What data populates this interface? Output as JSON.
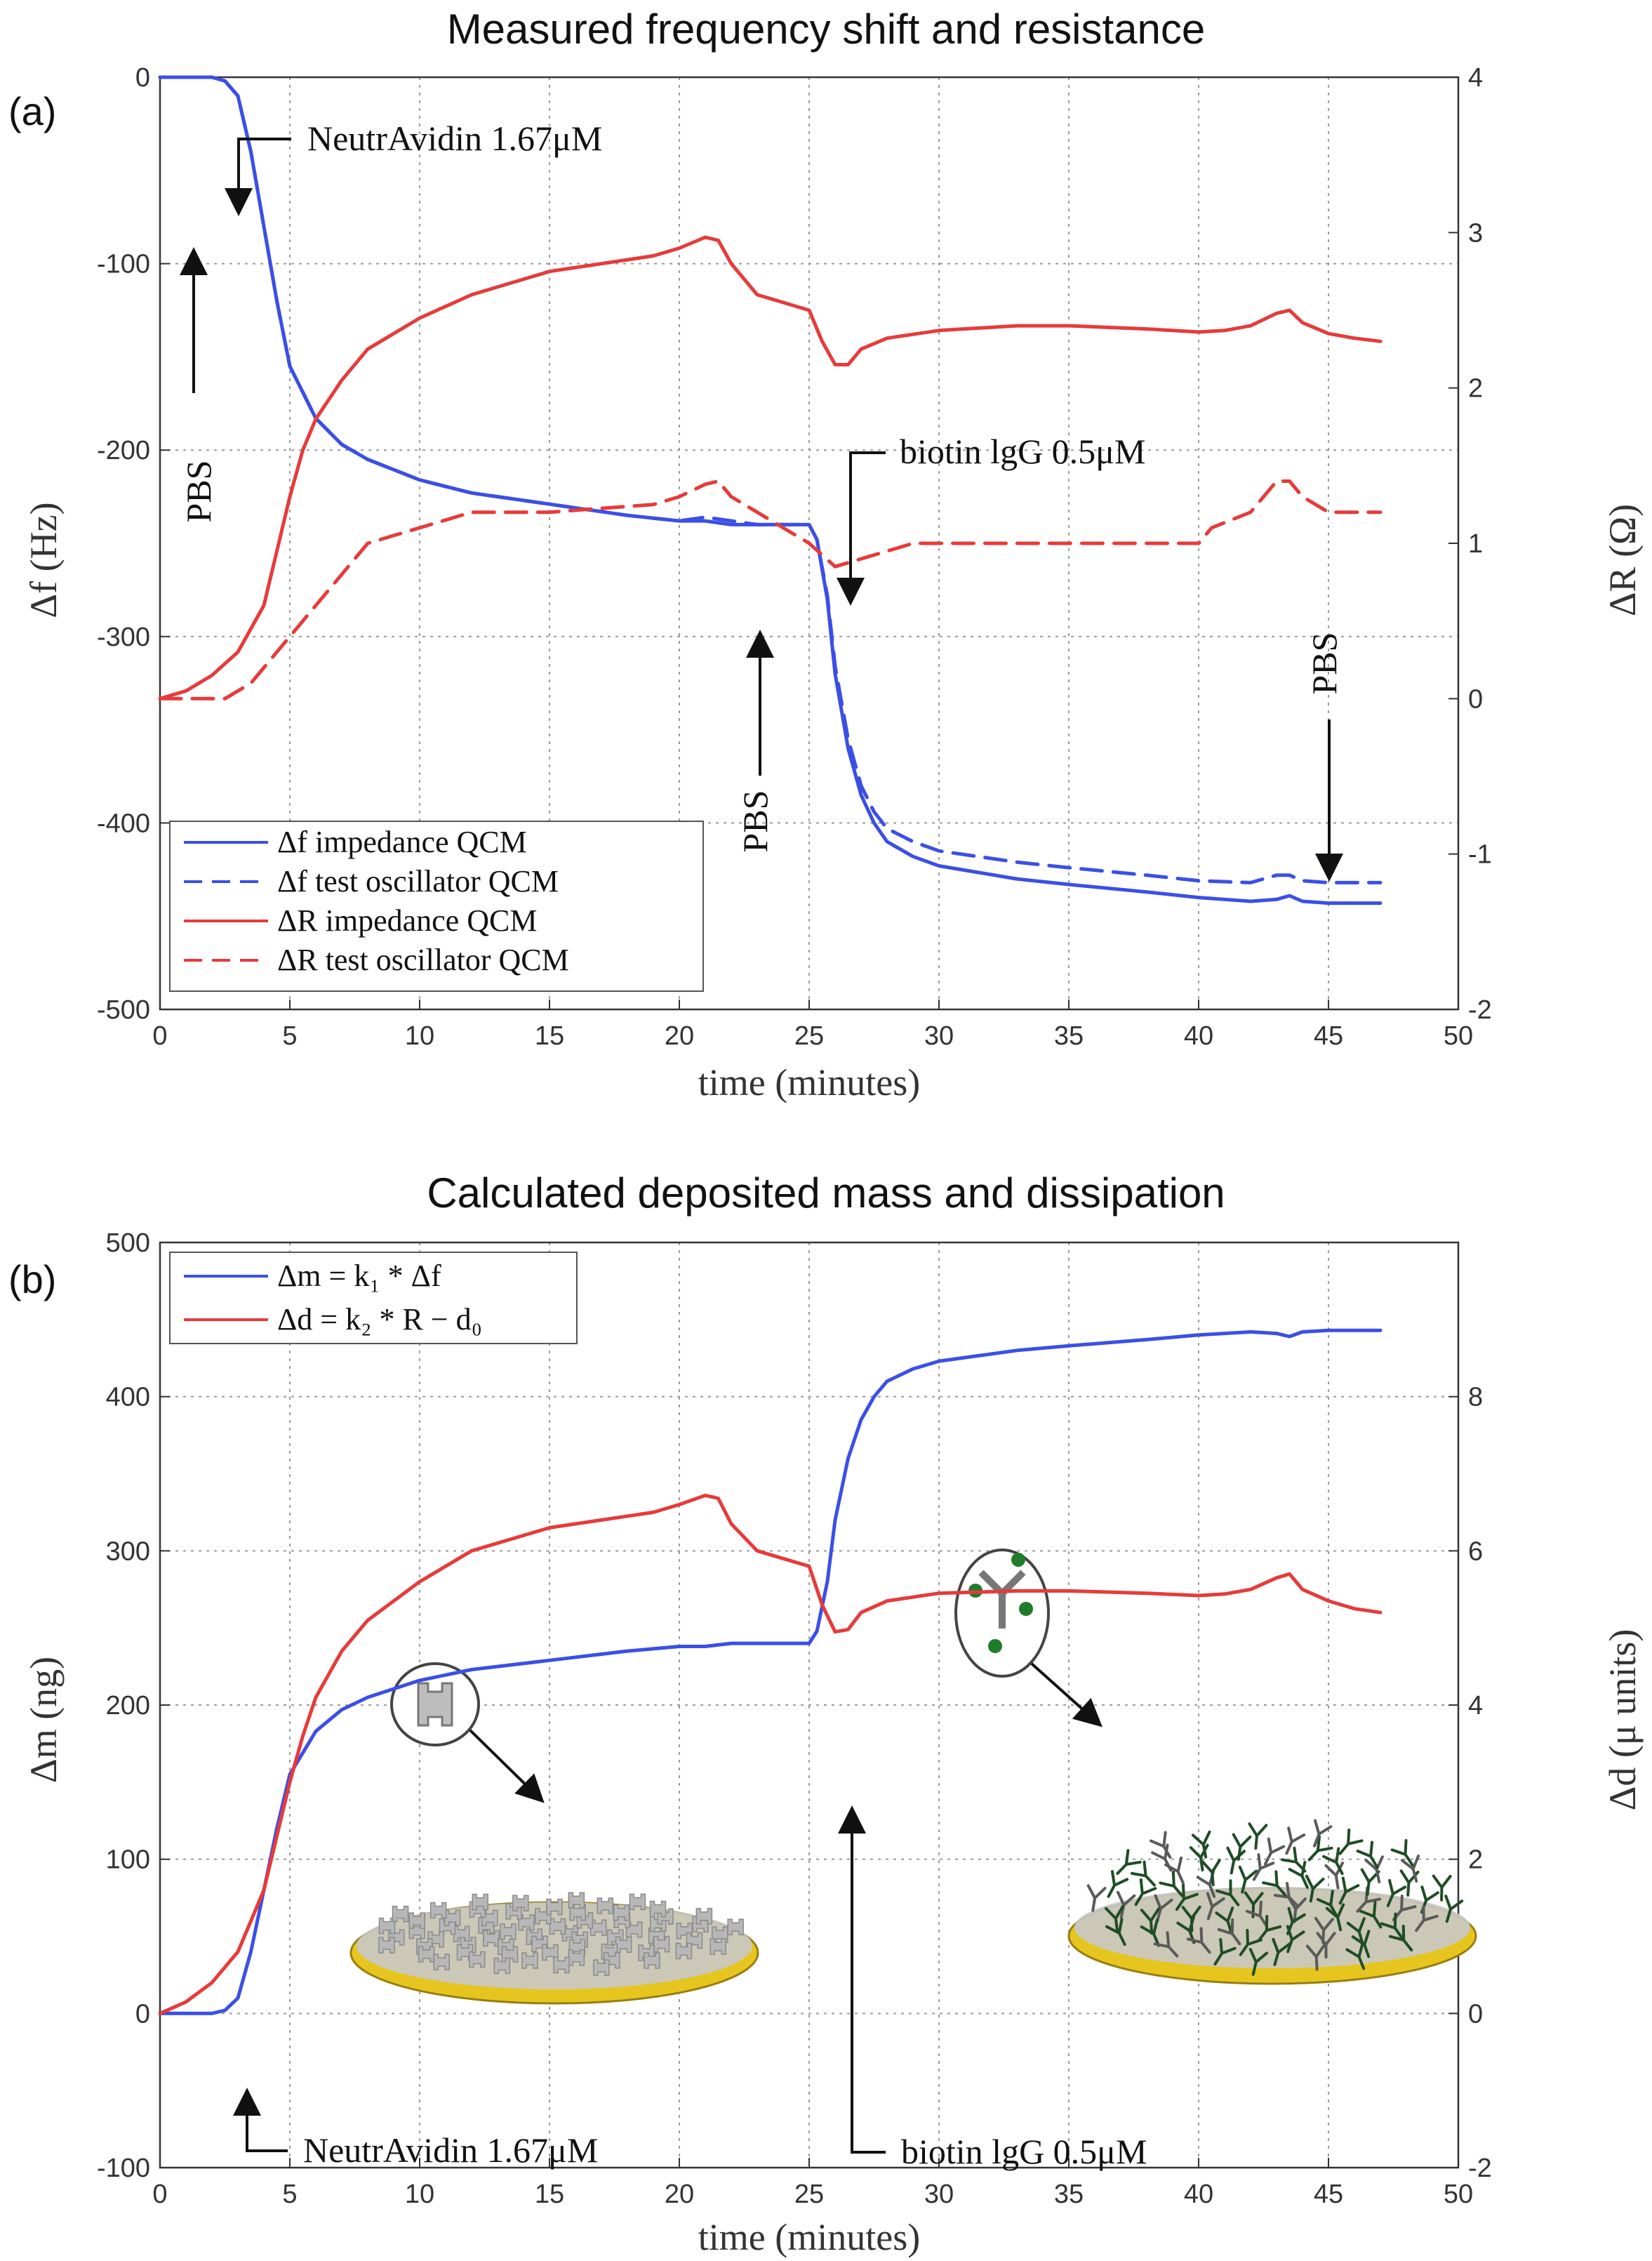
{
  "chart_data": [
    {
      "type": "line",
      "panel": "(a)",
      "title": "Measured frequency shift and resistance",
      "xlabel": "time (minutes)",
      "ylabel": "Δf (Hz)",
      "y2label": "ΔR (Ω)",
      "xlim": [
        0,
        50
      ],
      "ylim": [
        -500,
        0
      ],
      "y2lim": [
        -2,
        4
      ],
      "xticks": [
        "0",
        "5",
        "10",
        "15",
        "20",
        "25",
        "30",
        "35",
        "40",
        "45",
        "50"
      ],
      "yticks": [
        "0",
        "-100",
        "-200",
        "-300",
        "-400",
        "-500"
      ],
      "y2ticks": [
        "4",
        "3",
        "2",
        "1",
        "0",
        "-1",
        "-2"
      ],
      "grid": true,
      "legend_position": "bottom-left",
      "series": [
        {
          "name": "Δf impedance QCM",
          "axis": "left",
          "color": "#3b4fe6",
          "dash": "solid",
          "x": [
            0,
            1,
            2,
            2.5,
            3,
            3.5,
            4,
            4.5,
            5,
            6,
            7,
            8,
            10,
            12,
            15,
            18,
            20,
            21,
            22,
            23,
            24,
            25,
            25.3,
            25.7,
            26,
            26.5,
            27,
            27.5,
            28,
            29,
            30,
            33,
            35,
            38,
            40,
            42,
            43,
            43.5,
            44,
            45,
            46,
            47
          ],
          "y": [
            0,
            0,
            0,
            -2,
            -10,
            -40,
            -80,
            -120,
            -155,
            -183,
            -197,
            -205,
            -216,
            -223,
            -229,
            -235,
            -238,
            -238,
            -240,
            -240,
            -240,
            -240,
            -248,
            -280,
            -320,
            -360,
            -385,
            -400,
            -410,
            -418,
            -423,
            -430,
            -433,
            -437,
            -440,
            -442,
            -441,
            -439,
            -442,
            -443,
            -443,
            -443
          ]
        },
        {
          "name": "Δf test oscillator QCM",
          "axis": "left",
          "color": "#3b4fe6",
          "dash": "dashed",
          "x": [
            0,
            1,
            2,
            2.5,
            3,
            3.5,
            4,
            4.5,
            5,
            6,
            7,
            8,
            10,
            12,
            15,
            18,
            20,
            21,
            22,
            23,
            24,
            25,
            25.3,
            25.7,
            26,
            26.5,
            27,
            27.5,
            28,
            29,
            30,
            33,
            35,
            38,
            40,
            42,
            43,
            43.5,
            44,
            45,
            46,
            47
          ],
          "y": [
            0,
            0,
            0,
            -2,
            -10,
            -40,
            -80,
            -120,
            -155,
            -183,
            -197,
            -205,
            -216,
            -223,
            -229,
            -235,
            -238,
            -236,
            -238,
            -240,
            -240,
            -240,
            -248,
            -278,
            -316,
            -355,
            -380,
            -394,
            -403,
            -410,
            -415,
            -421,
            -424,
            -428,
            -431,
            -432,
            -428,
            -428,
            -431,
            -432,
            -432,
            -432
          ]
        },
        {
          "name": "ΔR impedance QCM",
          "axis": "right",
          "color": "#e63b3b",
          "dash": "solid",
          "x": [
            0,
            1,
            2,
            3,
            4,
            4.5,
            5,
            5.5,
            6,
            7,
            8,
            10,
            12,
            15,
            17,
            19,
            20,
            21,
            21.5,
            22,
            23,
            24,
            25,
            25.5,
            26,
            26.5,
            27,
            28,
            30,
            33,
            35,
            38,
            40,
            41,
            42,
            43,
            43.5,
            44,
            45,
            46,
            47
          ],
          "y": [
            0,
            0.05,
            0.15,
            0.3,
            0.6,
            0.95,
            1.3,
            1.6,
            1.8,
            2.05,
            2.25,
            2.45,
            2.6,
            2.75,
            2.8,
            2.85,
            2.9,
            2.97,
            2.95,
            2.8,
            2.6,
            2.55,
            2.5,
            2.3,
            2.15,
            2.15,
            2.25,
            2.32,
            2.37,
            2.4,
            2.4,
            2.38,
            2.36,
            2.37,
            2.4,
            2.48,
            2.5,
            2.42,
            2.35,
            2.32,
            2.3
          ]
        },
        {
          "name": "ΔR test oscillator QCM",
          "axis": "right",
          "color": "#e63b3b",
          "dash": "dashed",
          "x": [
            0,
            2.5,
            3,
            3.5,
            4,
            4.5,
            5,
            5.5,
            6,
            6.5,
            7,
            7.5,
            8,
            9,
            10,
            11,
            12,
            15,
            19,
            20,
            21,
            21.5,
            22,
            23,
            24,
            25,
            26,
            27,
            28,
            29,
            30,
            35,
            40,
            40.5,
            42,
            42.5,
            43,
            43.5,
            44,
            45,
            47
          ],
          "y": [
            0,
            0,
            0.05,
            0.1,
            0.2,
            0.3,
            0.4,
            0.5,
            0.6,
            0.7,
            0.8,
            0.9,
            1,
            1.05,
            1.1,
            1.15,
            1.2,
            1.2,
            1.25,
            1.3,
            1.38,
            1.4,
            1.3,
            1.2,
            1.1,
            1,
            0.85,
            0.9,
            0.95,
            1,
            1,
            1,
            1,
            1.1,
            1.2,
            1.3,
            1.4,
            1.4,
            1.3,
            1.2,
            1.2
          ]
        }
      ],
      "annotations": [
        {
          "text": "NeutrAvidin 1.67μM",
          "x": 2.6,
          "y": 0
        },
        {
          "text": "PBS",
          "x": 1.2,
          "y": 0
        },
        {
          "text": "biotin lgG 0.5μM",
          "x": 25.2,
          "y": -240
        },
        {
          "text": "PBS",
          "x": 22.4,
          "y": -236
        },
        {
          "text": "PBS",
          "x": 43.2,
          "y": -428
        }
      ]
    },
    {
      "type": "line",
      "panel": "(b)",
      "title": "Calculated deposited mass and dissipation",
      "xlabel": "time (minutes)",
      "ylabel": "Δm (ng)",
      "y2label": "Δd (μ units)",
      "xlim": [
        0,
        50
      ],
      "ylim": [
        -100,
        500
      ],
      "y2lim": [
        -2,
        10
      ],
      "xticks": [
        "0",
        "5",
        "10",
        "15",
        "20",
        "25",
        "30",
        "35",
        "40",
        "45",
        "50"
      ],
      "yticks": [
        "500",
        "400",
        "300",
        "200",
        "100",
        "0",
        "-100"
      ],
      "y2ticks": [
        "8",
        "6",
        "4",
        "2",
        "0",
        "-2"
      ],
      "grid": true,
      "legend_position": "top-left",
      "series": [
        {
          "name": "Δm = k₁ * Δf",
          "axis": "left",
          "color": "#3b4fe6",
          "dash": "solid",
          "x": [
            0,
            1,
            2,
            2.5,
            3,
            3.5,
            4,
            4.5,
            5,
            6,
            7,
            8,
            10,
            12,
            15,
            18,
            20,
            21,
            22,
            23,
            24,
            25,
            25.3,
            25.7,
            26,
            26.5,
            27,
            27.5,
            28,
            29,
            30,
            33,
            35,
            38,
            40,
            42,
            43,
            43.5,
            44,
            45,
            46,
            47
          ],
          "y": [
            0,
            0,
            0,
            2,
            10,
            40,
            80,
            120,
            155,
            183,
            197,
            205,
            216,
            223,
            229,
            235,
            238,
            238,
            240,
            240,
            240,
            240,
            248,
            280,
            320,
            360,
            385,
            400,
            410,
            418,
            423,
            430,
            433,
            437,
            440,
            442,
            441,
            439,
            442,
            443,
            443,
            443
          ]
        },
        {
          "name": "Δd = k₂ * R − d₀",
          "axis": "right",
          "color": "#e63b3b",
          "dash": "solid",
          "x": [
            0,
            1,
            2,
            3,
            4,
            4.5,
            5,
            5.5,
            6,
            7,
            8,
            10,
            12,
            15,
            17,
            19,
            20,
            21,
            21.5,
            22,
            23,
            24,
            25,
            25.5,
            26,
            26.5,
            27,
            28,
            30,
            33,
            35,
            38,
            40,
            41,
            42,
            43,
            43.5,
            44,
            45,
            46,
            47
          ],
          "y": [
            0,
            0.15,
            0.4,
            0.8,
            1.6,
            2.3,
            3,
            3.6,
            4.1,
            4.7,
            5.1,
            5.6,
            6,
            6.3,
            6.4,
            6.5,
            6.6,
            6.72,
            6.68,
            6.35,
            6,
            5.9,
            5.8,
            5.3,
            4.95,
            4.98,
            5.2,
            5.35,
            5.45,
            5.48,
            5.48,
            5.45,
            5.42,
            5.44,
            5.5,
            5.65,
            5.7,
            5.5,
            5.35,
            5.25,
            5.2
          ]
        }
      ],
      "annotations": [
        {
          "text": "NeutrAvidin 1.67μM",
          "x": 3,
          "y": 0
        },
        {
          "text": "biotin lgG 0.5μM",
          "x": 25.3,
          "y": 220
        }
      ]
    }
  ]
}
